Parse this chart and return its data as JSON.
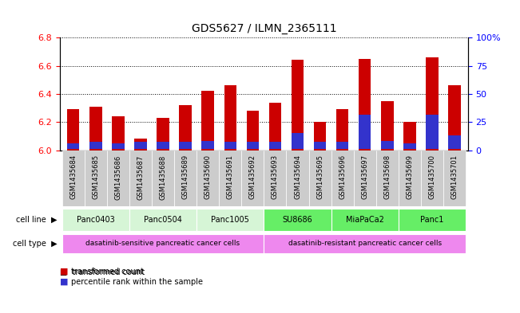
{
  "title": "GDS5627 / ILMN_2365111",
  "samples": [
    "GSM1435684",
    "GSM1435685",
    "GSM1435686",
    "GSM1435687",
    "GSM1435688",
    "GSM1435689",
    "GSM1435690",
    "GSM1435691",
    "GSM1435692",
    "GSM1435693",
    "GSM1435694",
    "GSM1435695",
    "GSM1435696",
    "GSM1435697",
    "GSM1435698",
    "GSM1435699",
    "GSM1435700",
    "GSM1435701"
  ],
  "transformed_count": [
    6.29,
    6.31,
    6.24,
    6.08,
    6.23,
    6.32,
    6.42,
    6.46,
    6.28,
    6.34,
    6.64,
    6.2,
    6.29,
    6.65,
    6.35,
    6.2,
    6.66,
    6.46
  ],
  "percentile_rank": [
    5,
    6,
    5,
    6,
    6,
    6,
    7,
    6,
    6,
    6,
    14,
    6,
    6,
    30,
    7,
    5,
    30,
    12
  ],
  "ylim_left": [
    6.0,
    6.8
  ],
  "ylim_right": [
    0,
    100
  ],
  "yticks_left": [
    6.0,
    6.2,
    6.4,
    6.6,
    6.8
  ],
  "yticks_right": [
    0,
    25,
    50,
    75,
    100
  ],
  "ytick_labels_right": [
    "0",
    "25",
    "50",
    "75",
    "100%"
  ],
  "bar_color": "#cc0000",
  "blue_color": "#3333cc",
  "cell_lines": [
    {
      "name": "Panc0403",
      "start": 0,
      "end": 3,
      "color": "#d6f5d6"
    },
    {
      "name": "Panc0504",
      "start": 3,
      "end": 6,
      "color": "#d6f5d6"
    },
    {
      "name": "Panc1005",
      "start": 6,
      "end": 9,
      "color": "#d6f5d6"
    },
    {
      "name": "SU8686",
      "start": 9,
      "end": 12,
      "color": "#66ee66"
    },
    {
      "name": "MiaPaCa2",
      "start": 12,
      "end": 15,
      "color": "#66ee66"
    },
    {
      "name": "Panc1",
      "start": 15,
      "end": 18,
      "color": "#66ee66"
    }
  ],
  "cell_type_sensitive": "dasatinib-sensitive pancreatic cancer cells",
  "cell_type_resistant": "dasatinib-resistant pancreatic cancer cells",
  "cell_type_color": "#ee88ee",
  "legend_bar_label": "transformed count",
  "legend_pct_label": "percentile rank within the sample",
  "bar_width": 0.55,
  "xtick_bg_color": "#cccccc",
  "grid_color": "black"
}
